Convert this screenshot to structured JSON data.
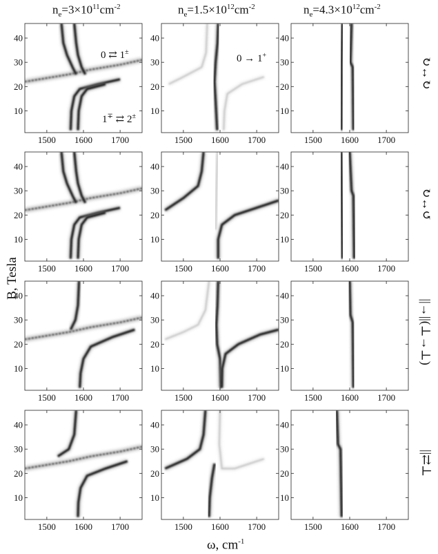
{
  "figure": {
    "column_titles": [
      {
        "base": "n",
        "sub": "e",
        "mid": "=3×10",
        "sup1": "11",
        "unit": "cm",
        "sup2": "-2"
      },
      {
        "base": "n",
        "sub": "e",
        "mid": "=1.5×10",
        "sup1": "12",
        "unit": "cm",
        "sup2": "-2"
      },
      {
        "base": "n",
        "sub": "e",
        "mid": "=4.3×10",
        "sup1": "12",
        "unit": "cm",
        "sup2": "-2"
      }
    ],
    "ylabel": "B, Tesla",
    "xlabel_main": "ω, cm",
    "xlabel_sup": "-1",
    "row_labels": [
      "↻↔↻",
      "↻↔↺",
      "||→||(⊥→⊥)",
      "||⇄⊥"
    ],
    "annotations": {
      "a1_base": "0 ⇄ 1",
      "a1_sup": "±",
      "a2_base": "1",
      "a2_sup": "∓",
      "a2_mid": " ⇄ 2",
      "a2_sup2": "±",
      "a3_base": "0 → 1",
      "a3_sup": "+"
    }
  },
  "chart_data": {
    "type": "heatmap",
    "colormap": "grayscale (white = 0, black = high absorption)",
    "xlim": [
      1440,
      1760
    ],
    "ylim": [
      1,
      46
    ],
    "xticks": [
      1500,
      1600,
      1700
    ],
    "yticks": [
      10,
      20,
      30,
      40
    ],
    "grid": false,
    "panels": [
      {
        "row": 1,
        "col": 1,
        "lines": [
          {
            "name": "0⇄1 branch (upper)",
            "points": [
              [
                1440,
                22
              ],
              [
                1500,
                23.5
              ],
              [
                1560,
                25
              ],
              [
                1620,
                27
              ],
              [
                1700,
                29
              ],
              [
                1760,
                31
              ]
            ]
          },
          {
            "name": "G mode upper-left",
            "points": [
              [
                1540,
                46
              ],
              [
                1545,
                38
              ],
              [
                1555,
                33
              ],
              [
                1570,
                28
              ],
              [
                1580,
                25
              ]
            ]
          },
          {
            "name": "G mode upper-right",
            "points": [
              [
                1575,
                46
              ],
              [
                1580,
                38
              ],
              [
                1585,
                33
              ],
              [
                1595,
                28
              ],
              [
                1605,
                25
              ]
            ]
          },
          {
            "name": "G mode lower",
            "points": [
              [
                1565,
                2
              ],
              [
                1567,
                10
              ],
              [
                1575,
                16
              ],
              [
                1590,
                19
              ],
              [
                1640,
                21
              ],
              [
                1700,
                23
              ]
            ]
          },
          {
            "name": "G mode lower 2",
            "points": [
              [
                1585,
                2
              ],
              [
                1587,
                10
              ],
              [
                1595,
                16
              ],
              [
                1610,
                19
              ],
              [
                1660,
                21
              ]
            ]
          }
        ]
      },
      {
        "row": 1,
        "col": 2,
        "lines": [
          {
            "name": "main",
            "points": [
              [
                1595,
                46
              ],
              [
                1593,
                38
              ],
              [
                1588,
                30
              ],
              [
                1585,
                22
              ],
              [
                1588,
                14
              ],
              [
                1592,
                2
              ]
            ]
          },
          {
            "name": "faint left",
            "points": [
              [
                1565,
                46
              ],
              [
                1562,
                34
              ],
              [
                1550,
                28
              ],
              [
                1500,
                24
              ],
              [
                1460,
                21
              ]
            ]
          },
          {
            "name": "faint right",
            "points": [
              [
                1610,
                2
              ],
              [
                1612,
                10
              ],
              [
                1620,
                17
              ],
              [
                1660,
                21
              ],
              [
                1720,
                24
              ]
            ]
          }
        ]
      },
      {
        "row": 1,
        "col": 3,
        "lines": [
          {
            "name": "left",
            "points": [
              [
                1580,
                46
              ],
              [
                1578,
                30
              ],
              [
                1577,
                2
              ]
            ]
          },
          {
            "name": "right",
            "points": [
              [
                1605,
                46
              ],
              [
                1602,
                30
              ],
              [
                1608,
                28
              ],
              [
                1610,
                2
              ]
            ]
          }
        ]
      },
      {
        "row": 2,
        "col": 1,
        "lines": [
          {
            "name": "branch",
            "points": [
              [
                1440,
                22
              ],
              [
                1500,
                23.5
              ],
              [
                1560,
                25
              ],
              [
                1620,
                27
              ],
              [
                1700,
                29
              ],
              [
                1760,
                31
              ]
            ]
          },
          {
            "name": "upper a",
            "points": [
              [
                1540,
                46
              ],
              [
                1545,
                38
              ],
              [
                1555,
                33
              ],
              [
                1570,
                28
              ],
              [
                1580,
                25
              ]
            ]
          },
          {
            "name": "upper b",
            "points": [
              [
                1575,
                46
              ],
              [
                1580,
                38
              ],
              [
                1585,
                33
              ],
              [
                1595,
                28
              ],
              [
                1605,
                25
              ]
            ]
          },
          {
            "name": "lower a",
            "points": [
              [
                1565,
                2
              ],
              [
                1567,
                10
              ],
              [
                1575,
                16
              ],
              [
                1590,
                19
              ],
              [
                1640,
                21
              ],
              [
                1700,
                23
              ]
            ]
          },
          {
            "name": "lower b",
            "points": [
              [
                1585,
                2
              ],
              [
                1587,
                10
              ],
              [
                1595,
                16
              ],
              [
                1610,
                19
              ],
              [
                1660,
                21
              ]
            ]
          }
        ]
      },
      {
        "row": 2,
        "col": 2,
        "lines": [
          {
            "name": "upper",
            "points": [
              [
                1555,
                46
              ],
              [
                1550,
                38
              ],
              [
                1540,
                32
              ],
              [
                1500,
                27
              ],
              [
                1450,
                22
              ]
            ]
          },
          {
            "name": "lower",
            "points": [
              [
                1595,
                2
              ],
              [
                1595,
                10
              ],
              [
                1605,
                16
              ],
              [
                1640,
                20
              ],
              [
                1700,
                23
              ],
              [
                1760,
                26
              ]
            ]
          },
          {
            "name": "faint",
            "points": [
              [
                1593,
                46
              ],
              [
                1590,
                30
              ],
              [
                1588,
                14
              ]
            ]
          }
        ]
      },
      {
        "row": 2,
        "col": 3,
        "lines": [
          {
            "name": "left",
            "points": [
              [
                1577,
                46
              ],
              [
                1578,
                30
              ],
              [
                1580,
                2
              ]
            ]
          },
          {
            "name": "right",
            "points": [
              [
                1600,
                46
              ],
              [
                1605,
                30
              ],
              [
                1610,
                28
              ],
              [
                1612,
                2
              ]
            ]
          }
        ]
      },
      {
        "row": 3,
        "col": 1,
        "lines": [
          {
            "name": "branch",
            "points": [
              [
                1440,
                22
              ],
              [
                1500,
                23.5
              ],
              [
                1560,
                25
              ],
              [
                1620,
                27
              ],
              [
                1700,
                29
              ],
              [
                1760,
                31
              ]
            ]
          },
          {
            "name": "upper",
            "points": [
              [
                1588,
                46
              ],
              [
                1585,
                36
              ],
              [
                1578,
                30
              ],
              [
                1565,
                26
              ]
            ]
          },
          {
            "name": "lower",
            "points": [
              [
                1590,
                2
              ],
              [
                1592,
                8
              ],
              [
                1600,
                14
              ],
              [
                1620,
                19
              ],
              [
                1680,
                23
              ],
              [
                1740,
                26
              ]
            ]
          }
        ]
      },
      {
        "row": 3,
        "col": 2,
        "lines": [
          {
            "name": "faint left",
            "points": [
              [
                1570,
                46
              ],
              [
                1560,
                34
              ],
              [
                1540,
                28
              ],
              [
                1500,
                25
              ],
              [
                1450,
                22
              ]
            ]
          },
          {
            "name": "main",
            "points": [
              [
                1595,
                46
              ],
              [
                1593,
                36
              ],
              [
                1590,
                28
              ],
              [
                1592,
                20
              ],
              [
                1600,
                14
              ],
              [
                1602,
                2
              ]
            ]
          },
          {
            "name": "right",
            "points": [
              [
                1605,
                2
              ],
              [
                1606,
                10
              ],
              [
                1615,
                16
              ],
              [
                1650,
                20
              ],
              [
                1710,
                24
              ],
              [
                1760,
                26
              ]
            ]
          }
        ]
      },
      {
        "row": 3,
        "col": 3,
        "lines": [
          {
            "name": "main",
            "points": [
              [
                1600,
                46
              ],
              [
                1602,
                32
              ],
              [
                1608,
                29
              ],
              [
                1610,
                2
              ]
            ]
          }
        ]
      },
      {
        "row": 4,
        "col": 1,
        "lines": [
          {
            "name": "branch",
            "points": [
              [
                1440,
                22
              ],
              [
                1500,
                23.5
              ],
              [
                1560,
                25
              ],
              [
                1620,
                27
              ],
              [
                1700,
                29
              ],
              [
                1760,
                31
              ]
            ]
          },
          {
            "name": "upper",
            "points": [
              [
                1580,
                46
              ],
              [
                1575,
                36
              ],
              [
                1560,
                30
              ],
              [
                1530,
                27
              ]
            ]
          },
          {
            "name": "lower",
            "points": [
              [
                1585,
                2
              ],
              [
                1586,
                8
              ],
              [
                1592,
                14
              ],
              [
                1610,
                19
              ],
              [
                1660,
                22
              ],
              [
                1720,
                25
              ]
            ]
          }
        ]
      },
      {
        "row": 4,
        "col": 2,
        "lines": [
          {
            "name": "left",
            "points": [
              [
                1560,
                46
              ],
              [
                1555,
                36
              ],
              [
                1545,
                30
              ],
              [
                1510,
                26
              ],
              [
                1450,
                22
              ]
            ]
          },
          {
            "name": "main",
            "points": [
              [
                1570,
                2
              ],
              [
                1572,
                10
              ],
              [
                1578,
                18
              ],
              [
                1585,
                24
              ]
            ]
          },
          {
            "name": "faint",
            "points": [
              [
                1600,
                46
              ],
              [
                1598,
                32
              ],
              [
                1605,
                22
              ],
              [
                1640,
                22
              ],
              [
                1720,
                26
              ]
            ]
          }
        ]
      },
      {
        "row": 4,
        "col": 3,
        "lines": [
          {
            "name": "main",
            "points": [
              [
                1565,
                46
              ],
              [
                1568,
                32
              ],
              [
                1575,
                30
              ],
              [
                1578,
                2
              ]
            ]
          }
        ]
      }
    ]
  }
}
